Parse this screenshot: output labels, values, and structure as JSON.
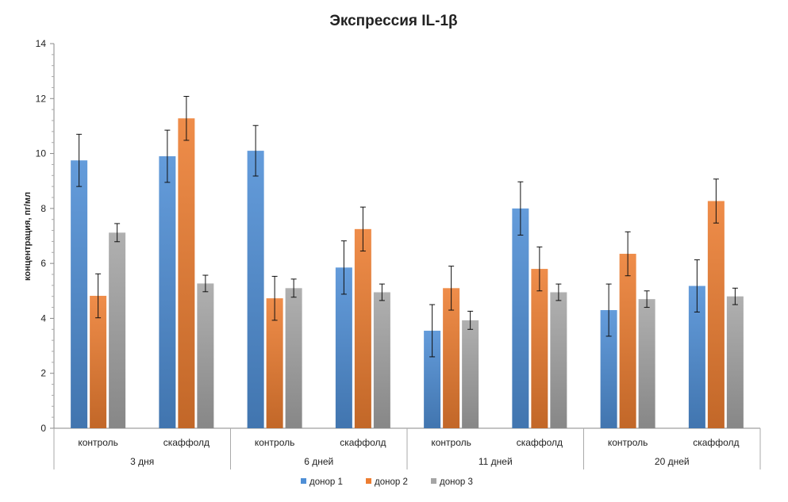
{
  "chart_data": {
    "type": "bar",
    "title": "Экспрессия IL-1β",
    "ylabel": "концентрация,  пг/мл",
    "xlabel": "",
    "ylim": [
      0,
      14
    ],
    "yticks": [
      0,
      2,
      4,
      6,
      8,
      10,
      12,
      14
    ],
    "groups": [
      {
        "label": "3 дня",
        "categories": [
          "контроль",
          "скаффолд"
        ]
      },
      {
        "label": "6 дней",
        "categories": [
          "контроль",
          "скаффолд"
        ]
      },
      {
        "label": "11 дней",
        "categories": [
          "контроль",
          "скаффолд"
        ]
      },
      {
        "label": "20 дней",
        "categories": [
          "контроль",
          "скаффолд"
        ]
      }
    ],
    "categories": [
      "контроль",
      "скаффолд",
      "контроль",
      "скаффолд",
      "контроль",
      "скаффолд",
      "контроль",
      "скаффолд"
    ],
    "series": [
      {
        "name": "донор 1",
        "color": "#4f8fd6",
        "values": [
          9.75,
          9.9,
          10.1,
          5.85,
          3.55,
          8.0,
          4.3,
          5.18
        ],
        "errors": [
          0.95,
          0.95,
          0.92,
          0.97,
          0.95,
          0.97,
          0.95,
          0.95
        ]
      },
      {
        "name": "донор 2",
        "color": "#ed7d31",
        "values": [
          4.82,
          11.28,
          4.73,
          7.25,
          5.1,
          5.8,
          6.35,
          8.27
        ],
        "errors": [
          0.8,
          0.8,
          0.8,
          0.8,
          0.8,
          0.8,
          0.8,
          0.8
        ]
      },
      {
        "name": "донор 3",
        "color": "#a5a5a5",
        "values": [
          7.12,
          5.27,
          5.1,
          4.95,
          3.93,
          4.95,
          4.7,
          4.8
        ],
        "errors": [
          0.33,
          0.3,
          0.33,
          0.3,
          0.33,
          0.3,
          0.3,
          0.3
        ]
      }
    ],
    "legend_position": "bottom",
    "grid": false
  }
}
